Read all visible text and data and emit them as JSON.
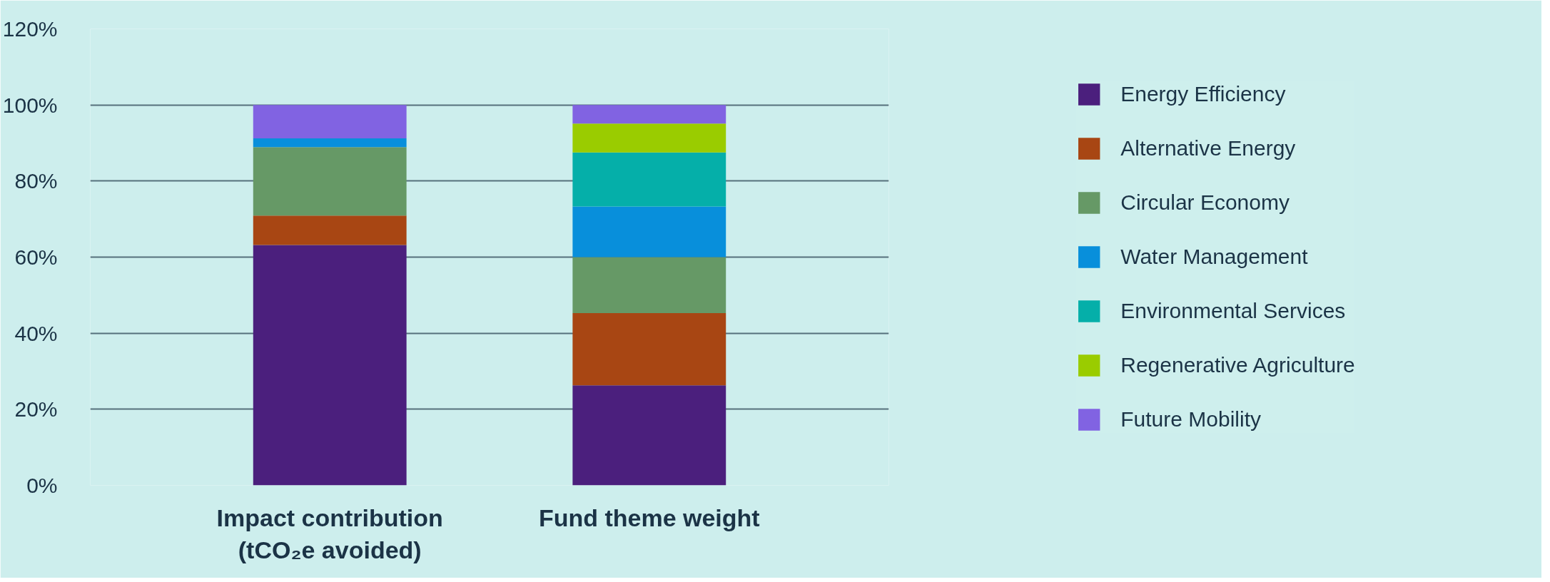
{
  "chart_data": {
    "type": "bar",
    "stacked": true,
    "categories": [
      "Impact contribution\n(tCO₂e avoided)",
      "Fund theme weight"
    ],
    "series": [
      {
        "name": "Energy Efficiency",
        "color": "#4b1f7d",
        "values": [
          63.2,
          26.3
        ]
      },
      {
        "name": "Alternative Energy",
        "color": "#a84613",
        "values": [
          7.7,
          19.0
        ]
      },
      {
        "name": "Circular Economy",
        "color": "#669966",
        "values": [
          18.0,
          14.7
        ]
      },
      {
        "name": "Water Management",
        "color": "#088fdb",
        "values": [
          2.3,
          13.3
        ]
      },
      {
        "name": "Environmental Services",
        "color": "#05afa9",
        "values": [
          0,
          14.2
        ]
      },
      {
        "name": "Regenerative Agriculture",
        "color": "#9acc00",
        "values": [
          0,
          7.6
        ]
      },
      {
        "name": "Future Mobility",
        "color": "#8163e2",
        "values": [
          8.8,
          4.9
        ]
      }
    ],
    "ylim": [
      0,
      120
    ],
    "yticks": [
      {
        "value": 0,
        "label": "0%"
      },
      {
        "value": 20,
        "label": "20%"
      },
      {
        "value": 40,
        "label": "40%"
      },
      {
        "value": 60,
        "label": "60%"
      },
      {
        "value": 80,
        "label": "80%"
      },
      {
        "value": 100,
        "label": "100%"
      },
      {
        "value": 120,
        "label": "120%"
      }
    ],
    "grid": "y",
    "legend": "right"
  }
}
